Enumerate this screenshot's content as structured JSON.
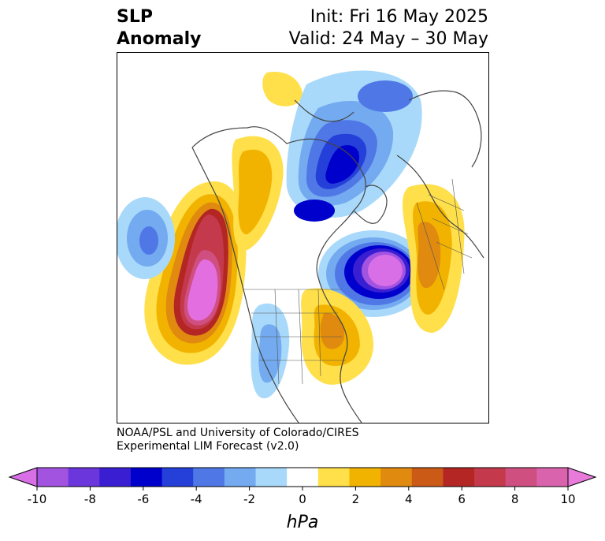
{
  "title": {
    "variable_line1": "SLP",
    "variable_line2": "Anomaly",
    "init": "Init: Fri 16 May 2025",
    "valid": "Valid: 24 May – 30 May"
  },
  "credit": {
    "line1": "NOAA/PSL and University of Colorado/CIRES",
    "line2": "Experimental LIM Forecast (v2.0)"
  },
  "colorbar": {
    "unit": "hPa",
    "colors": [
      "#d96fe6",
      "#a253e0",
      "#6b36dc",
      "#3a1fd2",
      "#0000cc",
      "#2540d9",
      "#4f78e6",
      "#73aaf0",
      "#a9d9fa",
      "#ffffff",
      "#ffdf4a",
      "#f2b300",
      "#e08a10",
      "#cc5a17",
      "#b32624",
      "#c43a4c",
      "#cf4f80",
      "#d964ad",
      "#e87ad9"
    ],
    "ticks": [
      "-10",
      "-8",
      "-6",
      "-4",
      "-2",
      "0",
      "2",
      "4",
      "6",
      "8",
      "10"
    ]
  },
  "map_legend": {
    "anomaly_colors": {
      "strong_positive": "#e36ee0",
      "positive_red": "#c43a4c",
      "positive_orange": "#e08a10",
      "positive_yellow": "#ffdf4a",
      "negative_light": "#a9d9fa",
      "negative_mid": "#4f78e6",
      "negative_deep": "#0000cc",
      "strong_negative": "#d96fe6"
    }
  }
}
